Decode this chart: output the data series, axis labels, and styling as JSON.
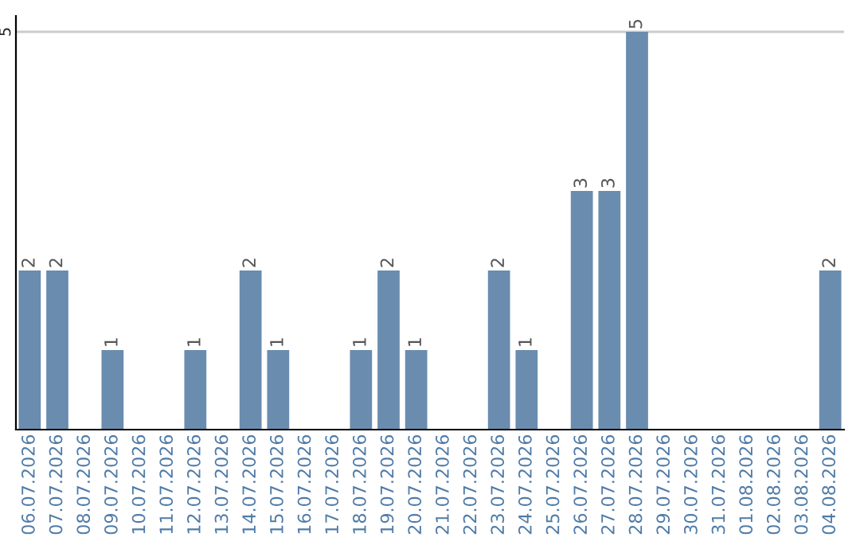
{
  "chart_data": {
    "type": "bar",
    "categories": [
      "06.07.2026",
      "07.07.2026",
      "08.07.2026",
      "09.07.2026",
      "10.07.2026",
      "11.07.2026",
      "12.07.2026",
      "13.07.2026",
      "14.07.2026",
      "15.07.2026",
      "16.07.2026",
      "17.07.2026",
      "18.07.2026",
      "19.07.2026",
      "20.07.2026",
      "21.07.2026",
      "22.07.2026",
      "23.07.2026",
      "24.07.2026",
      "25.07.2026",
      "26.07.2026",
      "27.07.2026",
      "28.07.2026",
      "29.07.2026",
      "30.07.2026",
      "31.07.2026",
      "01.08.2026",
      "02.08.2026",
      "03.08.2026",
      "04.08.2026"
    ],
    "values": [
      2,
      2,
      0,
      1,
      0,
      0,
      1,
      0,
      2,
      1,
      0,
      0,
      1,
      2,
      1,
      0,
      0,
      2,
      1,
      0,
      3,
      3,
      5,
      0,
      0,
      0,
      0,
      0,
      0,
      2
    ],
    "value_labels": [
      "2",
      "2",
      null,
      "1",
      null,
      null,
      "1",
      null,
      "2",
      "1",
      null,
      null,
      "1",
      "2",
      "1",
      null,
      null,
      "2",
      "1",
      null,
      "3",
      "3",
      "5",
      null,
      null,
      null,
      null,
      null,
      null,
      "2"
    ],
    "color": "#6a8caf",
    "ylim": [
      0,
      5.2
    ],
    "yticks": [
      5
    ],
    "grid": "y"
  }
}
